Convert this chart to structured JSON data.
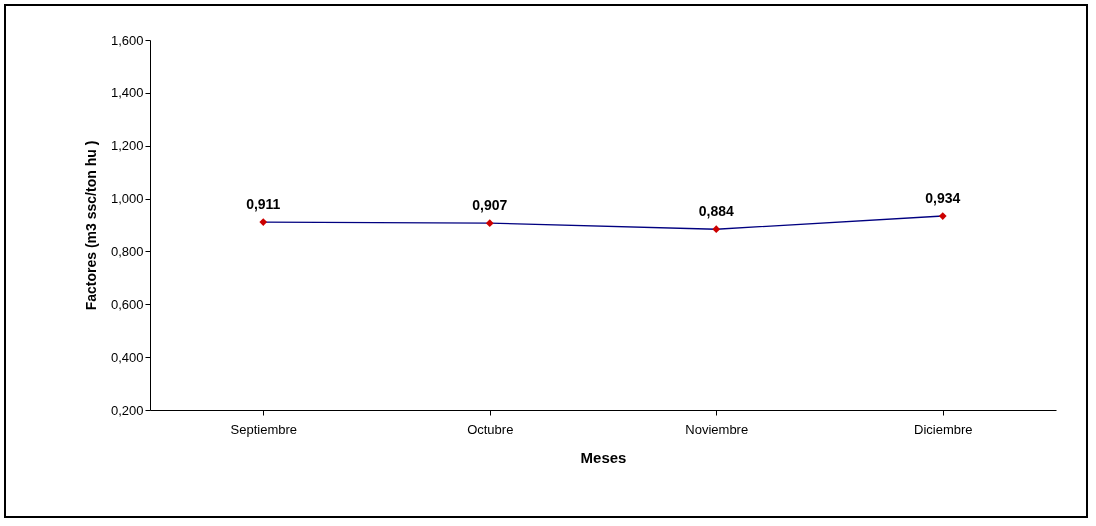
{
  "chart_data": {
    "type": "line",
    "xlabel": "Meses",
    "ylabel": "Factores (m3 ssc/ton hu )",
    "categories": [
      "Septiembre",
      "Octubre",
      "Noviembre",
      "Diciembre"
    ],
    "series": [
      {
        "color": "#000080",
        "colors": [
          "#cc0000",
          "#cc0000",
          "#cc0000",
          "#cc0000"
        ],
        "values": [
          0.911,
          0.907,
          0.884,
          0.934
        ],
        "value_labels": [
          "0,911",
          "0,907",
          "0,884",
          "0,934"
        ]
      }
    ],
    "ylim": [
      0.2,
      1.6
    ],
    "yticks": [
      {
        "value": 0.2,
        "label": "0,200"
      },
      {
        "value": 0.4,
        "label": "0,400"
      },
      {
        "value": 0.6,
        "label": "0,600"
      },
      {
        "value": 0.8,
        "label": "0,800"
      },
      {
        "value": 1.0,
        "label": "1,000"
      },
      {
        "value": 1.2,
        "label": "1,200"
      },
      {
        "value": 1.4,
        "label": "1,400"
      },
      {
        "value": 1.6,
        "label": "1,600"
      }
    ],
    "grid": false,
    "marker": "diamond",
    "line_style": "solid"
  }
}
